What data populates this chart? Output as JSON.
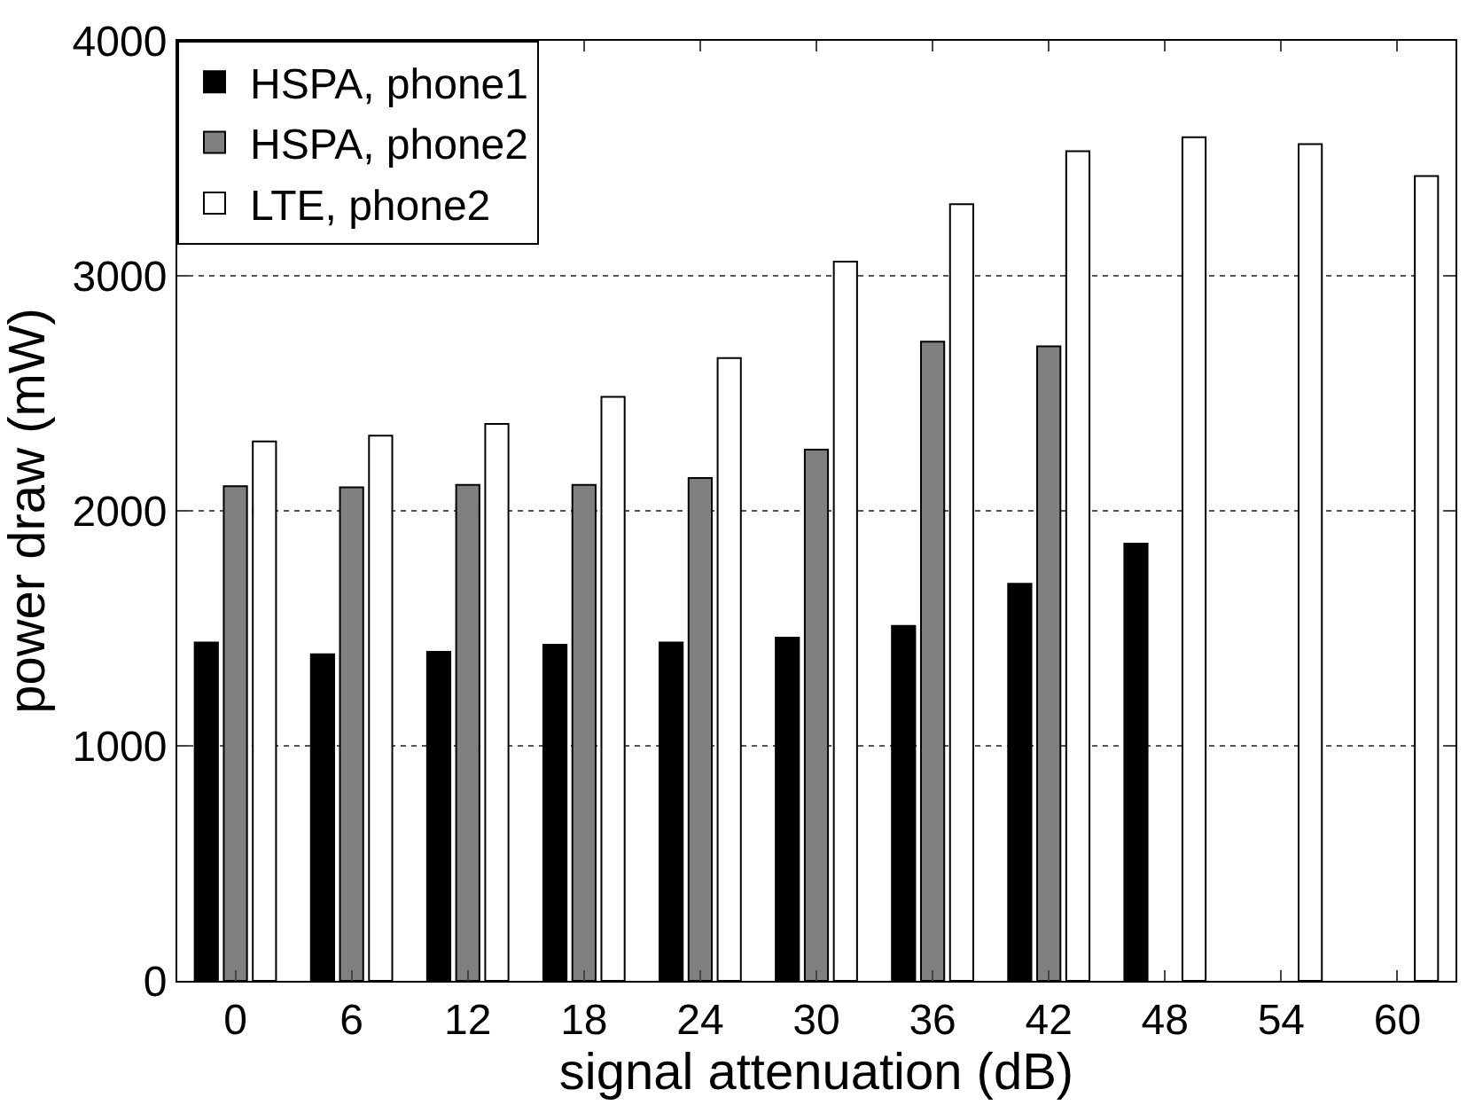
{
  "chart_data": {
    "type": "bar",
    "xlabel": "signal attenuation (dB)",
    "ylabel": "power draw (mW)",
    "categories": [
      "0",
      "6",
      "12",
      "18",
      "24",
      "30",
      "36",
      "42",
      "48",
      "54",
      "60"
    ],
    "series": [
      {
        "name": "HSPA, phone1",
        "color": "#000000",
        "values": [
          1440,
          1390,
          1400,
          1430,
          1440,
          1460,
          1510,
          1690,
          1860,
          null,
          null
        ]
      },
      {
        "name": "HSPA, phone2",
        "color": "#808080",
        "values": [
          2105,
          2100,
          2110,
          2110,
          2140,
          2260,
          2720,
          2700,
          null,
          null,
          null
        ]
      },
      {
        "name": "LTE, phone2",
        "color": "#ffffff",
        "values": [
          2295,
          2320,
          2370,
          2485,
          2650,
          3060,
          3305,
          3530,
          3590,
          3560,
          3425
        ]
      }
    ],
    "ylim": [
      0,
      4000
    ],
    "yticks": [
      0,
      1000,
      2000,
      3000,
      4000
    ],
    "grid": "y",
    "legend": "top left"
  }
}
